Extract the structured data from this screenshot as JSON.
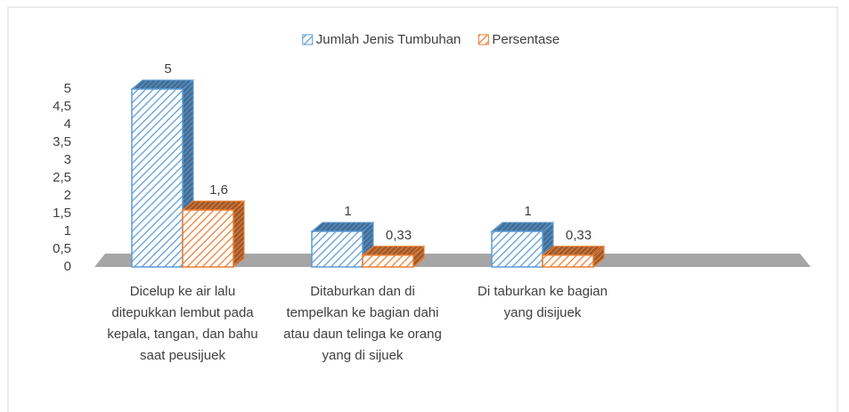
{
  "chart_data": {
    "type": "bar3d",
    "categories": [
      "Dicelup ke air lalu ditepukkan lembut pada kepala, tangan, dan bahu saat peusijuek",
      "Ditaburkan dan di tempelkan ke bagian dahi atau daun telinga ke orang yang di sijuek",
      "Di taburkan ke bagian yang disijuek"
    ],
    "series": [
      {
        "name": "Jumlah Jenis Tumbuhan",
        "color": "#5b9bd5",
        "values": [
          5,
          1,
          1
        ]
      },
      {
        "name": "Persentase",
        "color": "#ed7d31",
        "values": [
          1.6,
          0.33,
          0.33
        ],
        "value_labels": [
          "1,6",
          "0,33",
          "0,33"
        ]
      }
    ],
    "ylim": [
      0,
      5
    ],
    "yticks": [
      0,
      {
        "value": 0.5,
        "label": "0,5"
      },
      1,
      {
        "value": 1.5,
        "label": "1,5"
      },
      2,
      {
        "value": 2.5,
        "label": "2,5"
      },
      3,
      {
        "value": 3.5,
        "label": "3,5"
      },
      4,
      {
        "value": 4.5,
        "label": "4,5"
      },
      5
    ],
    "legend": "top",
    "grid": false
  }
}
